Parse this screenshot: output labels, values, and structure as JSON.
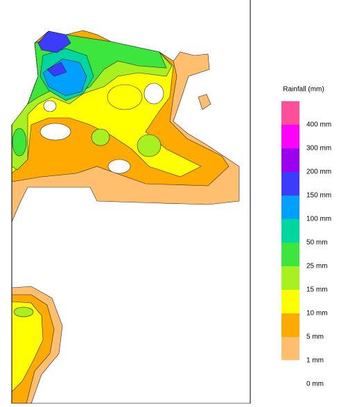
{
  "legend": {
    "title": "Rainfall (mm)",
    "labels": [
      "400 mm",
      "300 mm",
      "200 mm",
      "150 mm",
      "100 mm",
      "50 mm",
      "25 mm",
      "15 mm",
      "10 mm",
      "5 mm",
      "1 mm",
      "0 mm"
    ],
    "colors": [
      "#ff4f9a",
      "#ff00ff",
      "#9b00ef",
      "#3c3cff",
      "#00a0ff",
      "#00d6a0",
      "#3ce63c",
      "#a8f020",
      "#ffff00",
      "#ffaa00",
      "#ffbf6e",
      "#ffffff"
    ]
  }
}
